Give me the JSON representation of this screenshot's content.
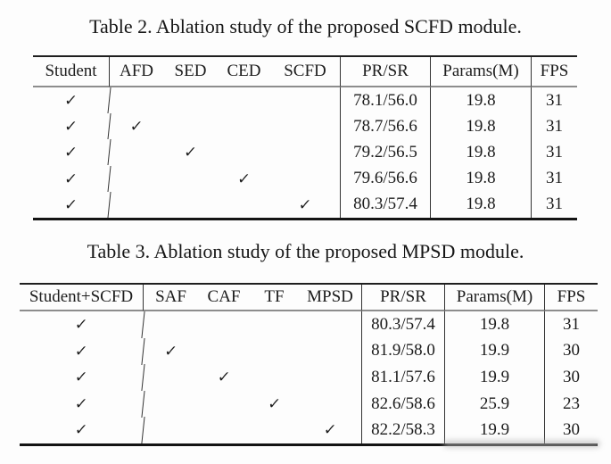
{
  "page": {
    "background_color": "#fdfdfd",
    "ink_color": "#1c1c1c"
  },
  "check_glyph": "✓",
  "tables": [
    {
      "caption": "Table 2. Ablation study of the proposed SCFD module.",
      "base_column": "Student",
      "check_columns": [
        "AFD",
        "SED",
        "CED",
        "SCFD"
      ],
      "metric_columns": [
        "PR/SR",
        "Params(M)",
        "FPS"
      ],
      "rows": [
        {
          "base": true,
          "checks": [
            false,
            false,
            false,
            false
          ],
          "metrics": [
            "78.1/56.0",
            "19.8",
            "31"
          ]
        },
        {
          "base": true,
          "checks": [
            true,
            false,
            false,
            false
          ],
          "metrics": [
            "78.7/56.6",
            "19.8",
            "31"
          ]
        },
        {
          "base": true,
          "checks": [
            false,
            true,
            false,
            false
          ],
          "metrics": [
            "79.2/56.5",
            "19.8",
            "31"
          ]
        },
        {
          "base": true,
          "checks": [
            false,
            false,
            true,
            false
          ],
          "metrics": [
            "79.6/56.6",
            "19.8",
            "31"
          ]
        },
        {
          "base": true,
          "checks": [
            false,
            false,
            false,
            true
          ],
          "metrics": [
            "80.3/57.4",
            "19.8",
            "31"
          ]
        }
      ]
    },
    {
      "caption": "Table 3. Ablation study of the proposed MPSD module.",
      "base_column": "Student+SCFD",
      "check_columns": [
        "SAF",
        "CAF",
        "TF",
        "MPSD"
      ],
      "metric_columns": [
        "PR/SR",
        "Params(M)",
        "FPS"
      ],
      "rows": [
        {
          "base": true,
          "checks": [
            false,
            false,
            false,
            false
          ],
          "metrics": [
            "80.3/57.4",
            "19.8",
            "31"
          ]
        },
        {
          "base": true,
          "checks": [
            true,
            false,
            false,
            false
          ],
          "metrics": [
            "81.9/58.0",
            "19.9",
            "30"
          ]
        },
        {
          "base": true,
          "checks": [
            false,
            true,
            false,
            false
          ],
          "metrics": [
            "81.1/57.6",
            "19.9",
            "30"
          ]
        },
        {
          "base": true,
          "checks": [
            false,
            false,
            true,
            false
          ],
          "metrics": [
            "82.6/58.6",
            "25.9",
            "23"
          ]
        },
        {
          "base": true,
          "checks": [
            false,
            false,
            false,
            true
          ],
          "metrics": [
            "82.2/58.3",
            "19.9",
            "30"
          ]
        }
      ]
    }
  ]
}
